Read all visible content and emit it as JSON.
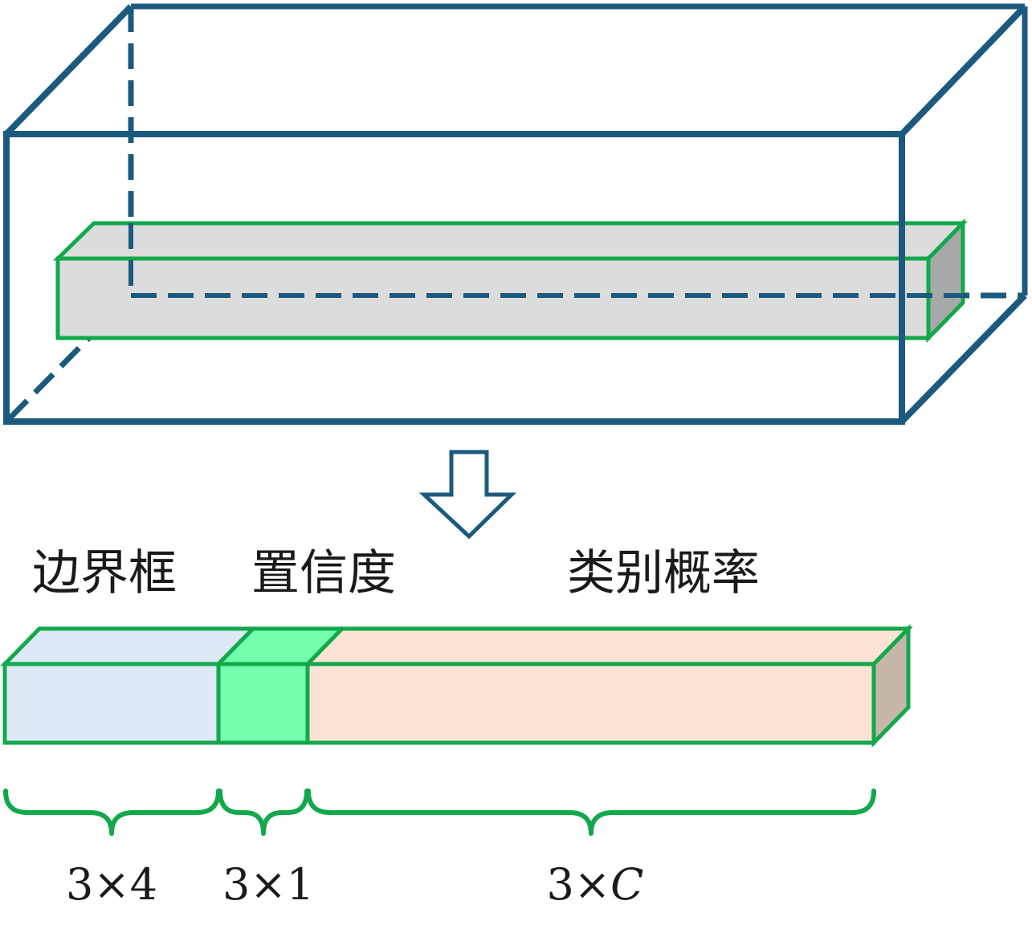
{
  "segments": [
    {
      "label": "边界框",
      "dimension_text": "3×4"
    },
    {
      "label": "置信度",
      "dimension_text": "3×1"
    },
    {
      "label": "类别概率",
      "dimension_text": "3×",
      "dimension_var": "C"
    }
  ],
  "colors": {
    "volume_edge": "#1b5a7e",
    "tube_edge": "#12a84b",
    "tube_fill": "#dcdcdc",
    "tube_end": "#a8a8a8",
    "box_fill": "#dde9f6",
    "conf_fill": "#74ffae",
    "class_fill": "#fce3d6",
    "class_end": "#c7b6aa",
    "brace": "#12a84b"
  }
}
